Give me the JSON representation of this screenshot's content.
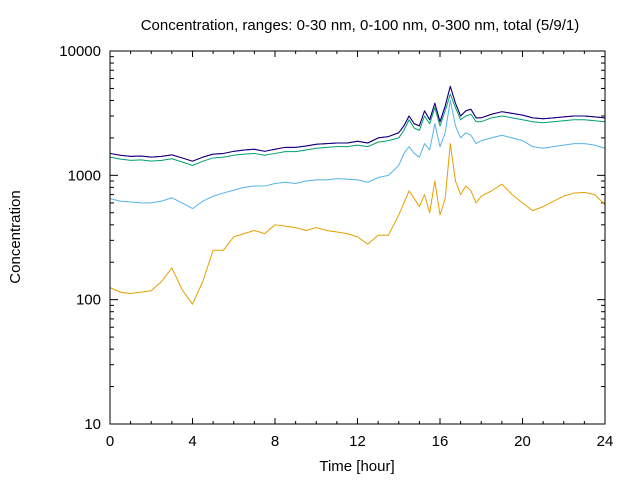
{
  "chart_data": {
    "type": "line",
    "title": "Concentration, ranges: 0-30 nm, 0-100 nm, 0-300 nm, total (5/9/1)",
    "xlabel": "Time [hour]",
    "ylabel": "Concentration",
    "xlim": [
      0,
      24
    ],
    "ylim": [
      10,
      10000
    ],
    "yscale": "log",
    "grid": false,
    "x_ticks": [
      "0",
      "4",
      "8",
      "12",
      "16",
      "20",
      "24"
    ],
    "y_ticks": [
      "10",
      "100",
      "1000",
      "10000"
    ],
    "x_tick_values": [
      0,
      4,
      8,
      12,
      16,
      20,
      24
    ],
    "y_tick_values": [
      10,
      100,
      1000,
      10000
    ],
    "x": [
      0,
      0.5,
      1,
      1.5,
      2,
      2.5,
      3,
      3.5,
      4,
      4.5,
      5,
      5.5,
      6,
      6.5,
      7,
      7.5,
      8,
      8.5,
      9,
      9.5,
      10,
      10.5,
      11,
      11.5,
      12,
      12.5,
      13,
      13.5,
      14,
      14.25,
      14.5,
      14.75,
      15,
      15.25,
      15.5,
      15.75,
      16,
      16.25,
      16.5,
      16.75,
      17,
      17.25,
      17.5,
      17.75,
      18,
      18.5,
      19,
      19.5,
      20,
      20.5,
      21,
      21.5,
      22,
      22.5,
      23,
      23.5,
      24
    ],
    "series": [
      {
        "color": "#e69f00",
        "values": [
          125,
          115,
          112,
          115,
          118,
          140,
          180,
          120,
          92,
          140,
          250,
          250,
          320,
          340,
          360,
          340,
          400,
          390,
          380,
          360,
          380,
          360,
          350,
          340,
          320,
          280,
          330,
          330,
          480,
          600,
          750,
          650,
          560,
          700,
          500,
          900,
          480,
          650,
          1800,
          900,
          700,
          820,
          750,
          600,
          680,
          750,
          850,
          700,
          600,
          520,
          560,
          620,
          680,
          720,
          730,
          700,
          580
        ]
      },
      {
        "color": "#56b4e9",
        "values": [
          650,
          620,
          610,
          600,
          600,
          620,
          660,
          600,
          540,
          620,
          680,
          720,
          760,
          800,
          820,
          820,
          860,
          880,
          860,
          900,
          920,
          920,
          940,
          930,
          920,
          880,
          960,
          1000,
          1200,
          1500,
          1700,
          1500,
          1400,
          1800,
          1600,
          2600,
          1700,
          2200,
          4000,
          2500,
          2000,
          2200,
          2100,
          1800,
          1900,
          2000,
          2100,
          2000,
          1900,
          1700,
          1650,
          1700,
          1750,
          1800,
          1800,
          1750,
          1650
        ]
      },
      {
        "color": "#009e73",
        "values": [
          1400,
          1350,
          1320,
          1330,
          1300,
          1320,
          1360,
          1280,
          1200,
          1300,
          1380,
          1400,
          1450,
          1480,
          1500,
          1450,
          1500,
          1550,
          1550,
          1600,
          1650,
          1680,
          1700,
          1700,
          1750,
          1700,
          1850,
          1900,
          2000,
          2300,
          2800,
          2400,
          2300,
          3000,
          2600,
          3500,
          2500,
          3300,
          4500,
          3500,
          2800,
          3000,
          3100,
          2700,
          2700,
          2900,
          3000,
          2900,
          2800,
          2700,
          2650,
          2700,
          2750,
          2800,
          2800,
          2750,
          2700
        ]
      },
      {
        "color": "#cc0099",
        "values": [
          1500,
          1450,
          1420,
          1430,
          1400,
          1420,
          1460,
          1380,
          1300,
          1400,
          1480,
          1500,
          1560,
          1600,
          1620,
          1560,
          1620,
          1680,
          1680,
          1720,
          1780,
          1800,
          1820,
          1820,
          1880,
          1820,
          2000,
          2050,
          2200,
          2500,
          3000,
          2600,
          2500,
          3300,
          2800,
          3800,
          2700,
          3600,
          5200,
          3800,
          3000,
          3300,
          3400,
          2900,
          2900,
          3100,
          3250,
          3150,
          3050,
          2900,
          2850,
          2900,
          2950,
          3000,
          3000,
          2950,
          2900
        ]
      },
      {
        "color": "#000080",
        "values": [
          1500,
          1450,
          1420,
          1430,
          1400,
          1420,
          1460,
          1380,
          1300,
          1400,
          1480,
          1500,
          1560,
          1600,
          1620,
          1560,
          1620,
          1680,
          1680,
          1720,
          1780,
          1800,
          1820,
          1820,
          1880,
          1820,
          2000,
          2050,
          2200,
          2500,
          3000,
          2600,
          2500,
          3300,
          2800,
          3800,
          2700,
          3600,
          5200,
          3800,
          3000,
          3300,
          3400,
          2900,
          2900,
          3100,
          3250,
          3150,
          3050,
          2900,
          2850,
          2900,
          2950,
          3000,
          3000,
          2950,
          2900
        ]
      }
    ]
  }
}
